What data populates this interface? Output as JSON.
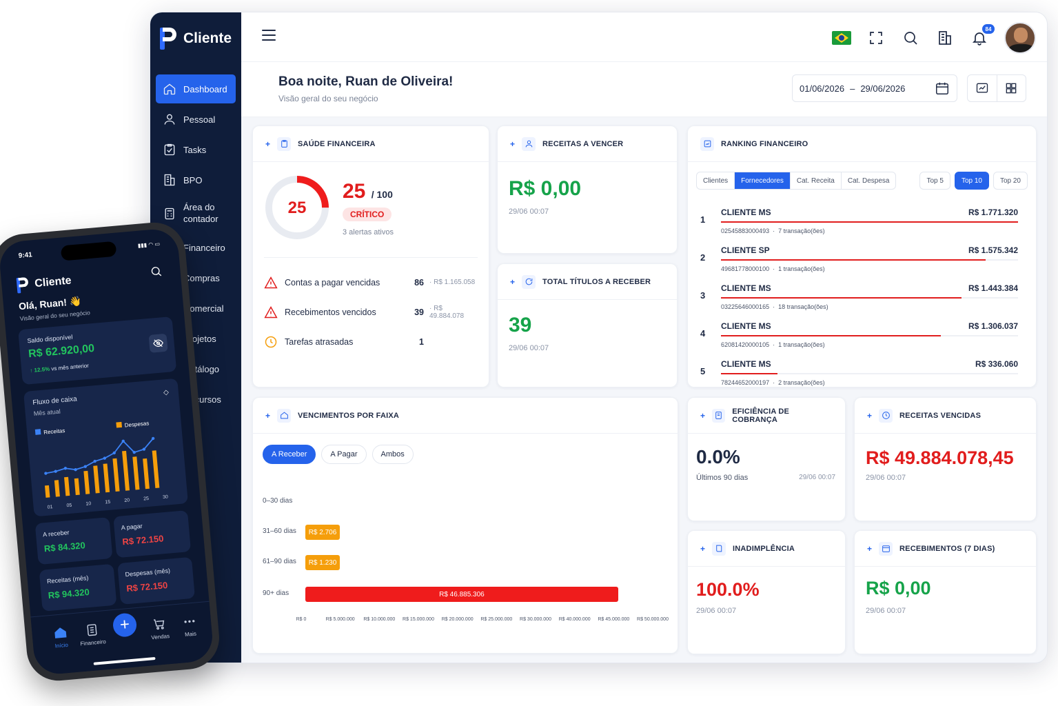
{
  "app": {
    "name": "Cliente"
  },
  "sidebar": {
    "items": [
      {
        "label": "Dashboard",
        "icon": "home-icon",
        "active": true
      },
      {
        "label": "Pessoal",
        "icon": "user-icon"
      },
      {
        "label": "Tasks",
        "icon": "clipboard-icon"
      },
      {
        "label": "BPO",
        "icon": "building-icon"
      },
      {
        "label": "Área do contador",
        "icon": "calculator-icon"
      },
      {
        "label": "Financeiro",
        "icon": "bank-icon"
      },
      {
        "label": "Compras",
        "icon": "cart-icon"
      },
      {
        "label": "Comercial",
        "icon": "briefcase-icon"
      },
      {
        "label": "Projetos",
        "icon": "folder-icon"
      },
      {
        "label": "Catálogo",
        "icon": "book-icon"
      },
      {
        "label": "Recursos",
        "icon": "layers-icon"
      }
    ]
  },
  "topbar": {
    "notifications_count": "84"
  },
  "header": {
    "greeting": "Boa noite, Ruan de Oliveira!",
    "subtitle": "Visão geral do seu negócio",
    "date_from": "01/06/2026",
    "date_sep": "–",
    "date_to": "29/06/2026"
  },
  "saude": {
    "title": "SAÚDE FINANCEIRA",
    "score": "25",
    "score_max": "/ 100",
    "score_fraction": 0.25,
    "status": "CRÍTICO",
    "alerts": "3 alertas ativos",
    "rows": [
      {
        "label": "Contas a pagar vencidas",
        "count": "86",
        "amount": "R$ 1.165.058"
      },
      {
        "label": "Recebimentos vencidos",
        "count": "39",
        "amount": "R$ 49.884.078"
      },
      {
        "label": "Tarefas atrasadas",
        "count": "1",
        "amount": ""
      }
    ]
  },
  "receitas_vencer": {
    "title": "RECEITAS A VENCER",
    "value": "R$ 0,00",
    "stamp": "29/06 00:07"
  },
  "titulos_receber": {
    "title": "TOTAL TÍTULOS A RECEBER",
    "value": "39",
    "stamp": "29/06 00:07"
  },
  "ranking": {
    "title": "RANKING FINANCEIRO",
    "tabs": [
      "Clientes",
      "Fornecedores",
      "Cat. Receita",
      "Cat. Despesa"
    ],
    "active_tab": 1,
    "tops": [
      "Top 5",
      "Top 10",
      "Top 20"
    ],
    "active_top": 1,
    "rows": [
      {
        "pos": "1",
        "name": "CLIENTE MS",
        "value": "R$ 1.771.320",
        "doc": "02545883000493",
        "tx": "7 transação(ões)",
        "share": 1.0
      },
      {
        "pos": "2",
        "name": "CLIENTE SP",
        "value": "R$ 1.575.342",
        "doc": "49681778000100",
        "tx": "1 transação(ões)",
        "share": 0.89
      },
      {
        "pos": "3",
        "name": "CLIENTE MS",
        "value": "R$ 1.443.384",
        "doc": "03225646000165",
        "tx": "18 transação(ões)",
        "share": 0.81
      },
      {
        "pos": "4",
        "name": "CLIENTE MS",
        "value": "R$ 1.306.037",
        "doc": "62081420000105",
        "tx": "1 transação(ões)",
        "share": 0.74
      },
      {
        "pos": "5",
        "name": "CLIENTE MS",
        "value": "R$ 336.060",
        "doc": "78244652000197",
        "tx": "2 transação(ões)",
        "share": 0.19
      }
    ]
  },
  "vencimentos": {
    "title": "VENCIMENTOS POR FAIXA",
    "filters": [
      "A Receber",
      "A Pagar",
      "Ambos"
    ],
    "active_filter": 0
  },
  "chart_data": {
    "type": "bar",
    "orientation": "horizontal",
    "categories": [
      "0–30 dias",
      "31–60 dias",
      "61–90 dias",
      "90+ dias"
    ],
    "values": [
      0,
      2706,
      1230,
      46885306
    ],
    "data_labels": [
      "",
      "R$ 2.706",
      "R$ 1.230",
      "R$ 46.885.306"
    ],
    "colors": [
      "#f59e0b",
      "#f59e0b",
      "#f59e0b",
      "#ef1c1c"
    ],
    "xlim": [
      0,
      50000000
    ],
    "xticks": [
      "R$ 0",
      "R$ 5.000.000",
      "R$ 10.000.000",
      "R$ 15.000.000",
      "R$ 20.000.000",
      "R$ 25.000.000",
      "R$ 30.000.000",
      "R$ 40.000.000",
      "R$ 45.000.000",
      "R$ 50.000.000"
    ]
  },
  "eficiencia": {
    "title": "EFICIÊNCIA DE COBRANÇA",
    "value": "0.0%",
    "label": "Últimos 90 dias",
    "stamp": "29/06 00:07"
  },
  "receitas_vencidas": {
    "title": "RECEITAS VENCIDAS",
    "value": "R$ 49.884.078,45",
    "stamp": "29/06 00:07"
  },
  "inadimplencia": {
    "title": "INADIMPLÊNCIA",
    "value": "100.0%",
    "stamp": "29/06 00:07"
  },
  "recebimentos7": {
    "title": "RECEBIMENTOS (7 DIAS)",
    "value": "R$ 0,00",
    "stamp": "29/06 00:07"
  },
  "phone": {
    "time": "9:41",
    "app_name": "Cliente",
    "hello": "Olá, Ruan! 👋",
    "hello_sub": "Visão geral do seu negócio",
    "saldo_label": "Saldo disponível",
    "saldo_value": "R$ 62.920,00",
    "saldo_delta": "↑ 12.5%",
    "saldo_delta_label": "vs mês anterior",
    "fluxo_title": "Fluxo de caixa",
    "fluxo_sub": "Mês atual",
    "legend_receitas": "Receitas",
    "legend_despesas": "Despesas",
    "fluxo_x": [
      "01",
      "05",
      "10",
      "15",
      "20",
      "25",
      "30"
    ],
    "cards": [
      {
        "label": "A receber",
        "value": "R$ 84.320",
        "tone": "green"
      },
      {
        "label": "A pagar",
        "value": "R$ 72.150",
        "tone": "red"
      },
      {
        "label": "Receitas (mês)",
        "value": "R$ 94.320",
        "tone": "green"
      },
      {
        "label": "Despesas (mês)",
        "value": "R$ 72.150",
        "tone": "red"
      }
    ],
    "nav": [
      "Início",
      "Financeiro",
      "Vendas",
      "Mais"
    ]
  }
}
